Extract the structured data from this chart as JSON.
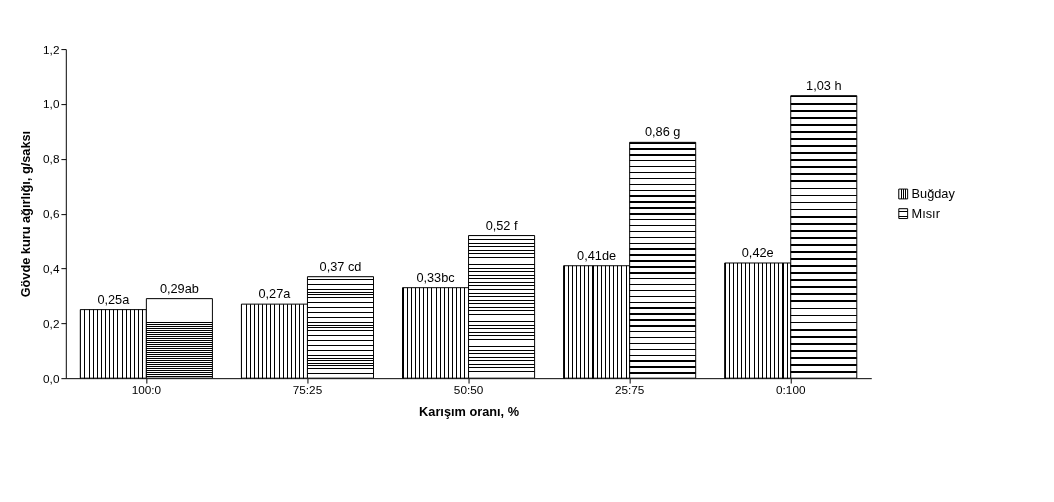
{
  "chart_data": {
    "type": "bar",
    "xlabel": "Karışım oranı, %",
    "ylabel": "Gövde kuru ağırlığı, g/saksı",
    "categories": [
      "100:0",
      "75:25",
      "50:50",
      "25:75",
      "0:100"
    ],
    "series": [
      {
        "name": "Buğday",
        "color": "#000000",
        "values": [
          0.25,
          0.27,
          0.33,
          0.41,
          0.42
        ],
        "value_labels": [
          "0,25a",
          "0,27a",
          "0,33bc",
          "0,41de",
          "0,42e"
        ]
      },
      {
        "name": "Mısır",
        "color": "#000000",
        "values": [
          0.29,
          0.37,
          0.52,
          0.86,
          1.03
        ],
        "value_labels": [
          "0,29ab",
          "0,37 cd",
          "0,52 f",
          "0,86 g",
          "1,03 h"
        ]
      }
    ],
    "ylim": [
      0,
      1.2
    ],
    "yticks": [
      {
        "value": 0,
        "label": "0,0"
      },
      {
        "value": 0.2,
        "label": "0,2"
      },
      {
        "value": 0.4,
        "label": "0,4"
      },
      {
        "value": 0.6,
        "label": "0,6"
      },
      {
        "value": 0.8,
        "label": "0,8"
      },
      {
        "value": 1.0,
        "label": "1,0"
      },
      {
        "value": 1.2,
        "label": "1,2"
      }
    ],
    "grid": false,
    "legend": "right"
  }
}
